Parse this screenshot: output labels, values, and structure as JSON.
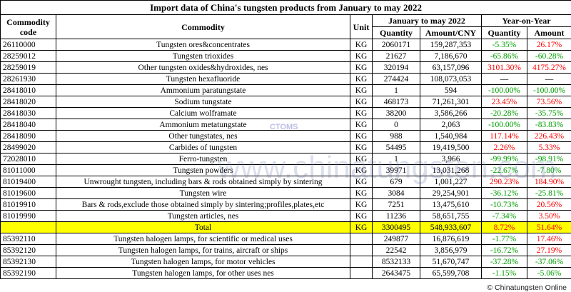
{
  "title": "Import data of China's tungsten products from January to may 2022",
  "header": {
    "code": "Commodity code",
    "commodity": "Commodity",
    "unit": "Unit",
    "period": "January to may 2022",
    "quantity": "Quantity",
    "amount": "Amount/CNY",
    "yoy": "Year-on-Year",
    "yoy_quantity": "Quantity",
    "yoy_amount": "Amount"
  },
  "rows": [
    {
      "code": "26110000",
      "commodity": "Tungsten ores&concentrates",
      "unit": "KG",
      "quantity": "2060171",
      "amount": "159,287,353",
      "yoy_quantity": "-5.35%",
      "yoy_amount": "26.17%"
    },
    {
      "code": "28259012",
      "commodity": "Tungsten trioxides",
      "unit": "KG",
      "quantity": "21627",
      "amount": "7,186,670",
      "yoy_quantity": "-65.86%",
      "yoy_amount": "-60.28%"
    },
    {
      "code": "28259019",
      "commodity": "Other tungsten oxides&hydroxides, nes",
      "unit": "KG",
      "quantity": "320194",
      "amount": "63,157,096",
      "yoy_quantity": "3101.30%",
      "yoy_amount": "4175.27%"
    },
    {
      "code": "28261930",
      "commodity": "Tungsten hexafluoride",
      "unit": "KG",
      "quantity": "274424",
      "amount": "108,073,053",
      "yoy_quantity": "—",
      "yoy_amount": "—"
    },
    {
      "code": "28418010",
      "commodity": "Ammonium paratungstate",
      "unit": "KG",
      "quantity": "1",
      "amount": "594",
      "yoy_quantity": "-100.00%",
      "yoy_amount": "-100.00%"
    },
    {
      "code": "28418020",
      "commodity": "Sodium tungstate",
      "unit": "KG",
      "quantity": "468173",
      "amount": "71,261,301",
      "yoy_quantity": "23.45%",
      "yoy_amount": "73.56%"
    },
    {
      "code": "28418030",
      "commodity": "Calcium wolframate",
      "unit": "KG",
      "quantity": "38200",
      "amount": "3,586,266",
      "yoy_quantity": "-20.28%",
      "yoy_amount": "-35.75%"
    },
    {
      "code": "28418040",
      "commodity": "Ammonium metatungstate",
      "unit": "KG",
      "quantity": "0",
      "amount": "2,063",
      "yoy_quantity": "-100.00%",
      "yoy_amount": "-83.83%"
    },
    {
      "code": "28418090",
      "commodity": "Other tungstates, nes",
      "unit": "KG",
      "quantity": "988",
      "amount": "1,540,984",
      "yoy_quantity": "117.14%",
      "yoy_amount": "226.43%"
    },
    {
      "code": "28499020",
      "commodity": "Carbides of tungsten",
      "unit": "KG",
      "quantity": "54495",
      "amount": "19,419,500",
      "yoy_quantity": "2.26%",
      "yoy_amount": "5.33%"
    },
    {
      "code": "72028010",
      "commodity": "Ferro-tungsten",
      "unit": "KG",
      "quantity": "1",
      "amount": "3,966",
      "yoy_quantity": "-99.99%",
      "yoy_amount": "-98.91%"
    },
    {
      "code": "81011000",
      "commodity": "Tungsten powders",
      "unit": "KG",
      "quantity": "39971",
      "amount": "13,031,268",
      "yoy_quantity": "-22.67%",
      "yoy_amount": "-7.80%"
    },
    {
      "code": "81019400",
      "commodity": "Unwrought tungsten, including bars & rods obtained simply by sintering",
      "unit": "KG",
      "quantity": "679",
      "amount": "1,001,227",
      "yoy_quantity": "290.23%",
      "yoy_amount": "184.90%"
    },
    {
      "code": "81019600",
      "commodity": "Tungsten wire",
      "unit": "KG",
      "quantity": "3084",
      "amount": "29,254,901",
      "yoy_quantity": "-36.12%",
      "yoy_amount": "-25.81%"
    },
    {
      "code": "81019910",
      "commodity": "Bars & rods,exclude those obtained simply by sintering;profiles,plates,etc",
      "unit": "KG",
      "quantity": "7251",
      "amount": "13,475,610",
      "yoy_quantity": "-10.73%",
      "yoy_amount": "20.56%"
    },
    {
      "code": "81019990",
      "commodity": "Tungsten articles, nes",
      "unit": "KG",
      "quantity": "11236",
      "amount": "58,651,755",
      "yoy_quantity": "-7.34%",
      "yoy_amount": "3.50%"
    },
    {
      "commodity": "Total",
      "unit": "KG",
      "quantity": "3300495",
      "amount": "548,933,607",
      "yoy_quantity": "8.72%",
      "yoy_amount": "51.64%",
      "highlight": true
    },
    {
      "code": "85392110",
      "commodity": "Tungsten halogen lamps, for scientific or medical uses",
      "quantity": "249877",
      "amount": "16,876,619",
      "yoy_quantity": "-1.77%",
      "yoy_amount": "17.46%"
    },
    {
      "code": "85392120",
      "commodity": "Tungsten halogen lamps, for trains, aircraft or ships",
      "quantity": "22542",
      "amount": "3,856,979",
      "yoy_quantity": "-16.72%",
      "yoy_amount": "27.19%"
    },
    {
      "code": "85392130",
      "commodity": "Tungsten halogen lamps, for motor vehicles",
      "quantity": "8532133",
      "amount": "51,670,747",
      "yoy_quantity": "-37.28%",
      "yoy_amount": "-37.06%"
    },
    {
      "code": "85392190",
      "commodity": "Tungsten halogen lamps, for other uses nes",
      "quantity": "2643475",
      "amount": "65,599,708",
      "yoy_quantity": "-1.15%",
      "yoy_amount": "-5.06%"
    }
  ],
  "watermark": "www.chinatungsten.com",
  "logo": "CTOMS",
  "footer": "© Chinatungsten Online"
}
